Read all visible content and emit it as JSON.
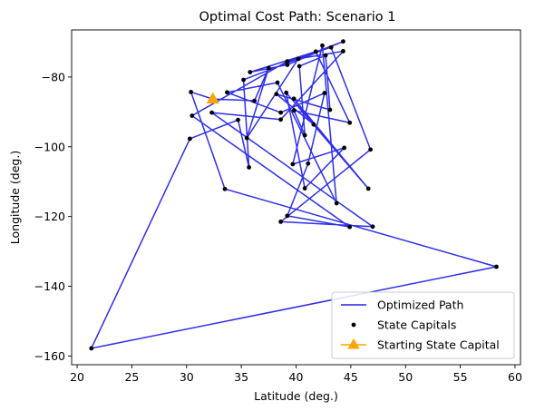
{
  "chart_data": {
    "type": "line",
    "title": "Optimal Cost Path: Scenario 1",
    "xlabel": "Latitude (deg.)",
    "ylabel": "Longitude (deg.)",
    "xlim": [
      19.5,
      60.5
    ],
    "ylim": [
      -162.5,
      -66.5
    ],
    "xticks": [
      20,
      25,
      30,
      35,
      40,
      45,
      50,
      55,
      60
    ],
    "yticks": [
      -160,
      -140,
      -120,
      -100,
      -80
    ],
    "grid": false,
    "legend_position": "lower-right",
    "colors": {
      "path": "#2424e6",
      "capitals": "#000000",
      "start": "#ffa500"
    },
    "series": [
      {
        "name": "Optimized Path",
        "kind": "line",
        "points": [
          [
            32.4,
            -86.3
          ],
          [
            30.4,
            -84.3
          ],
          [
            33.5,
            -112.1
          ],
          [
            58.3,
            -134.4
          ],
          [
            21.3,
            -157.8
          ],
          [
            30.3,
            -97.7
          ],
          [
            34.7,
            -92.3
          ],
          [
            35.7,
            -105.9
          ],
          [
            35.2,
            -80.8
          ],
          [
            44.3,
            -69.8
          ],
          [
            39.2,
            -76.5
          ],
          [
            35.8,
            -78.6
          ],
          [
            41.8,
            -72.7
          ],
          [
            44.9,
            -93.1
          ],
          [
            39.8,
            -89.6
          ],
          [
            40.8,
            -96.7
          ],
          [
            40.3,
            -76.9
          ],
          [
            42.7,
            -73.8
          ],
          [
            43.1,
            -89.4
          ],
          [
            38.2,
            -84.9
          ],
          [
            41.6,
            -93.6
          ],
          [
            39.8,
            -86.2
          ],
          [
            46.6,
            -112.0
          ],
          [
            39.1,
            -84.5
          ],
          [
            40.8,
            -111.9
          ],
          [
            44.4,
            -100.3
          ],
          [
            39.7,
            -105.0
          ],
          [
            42.4,
            -71.0
          ],
          [
            43.7,
            -116.2
          ],
          [
            38.3,
            -81.6
          ],
          [
            33.7,
            -84.4
          ],
          [
            38.6,
            -90.2
          ],
          [
            42.6,
            -84.6
          ],
          [
            41.1,
            -104.8
          ],
          [
            39.2,
            -119.8
          ],
          [
            44.9,
            -123.0
          ],
          [
            30.5,
            -91.1
          ],
          [
            39.2,
            -75.5
          ],
          [
            43.2,
            -71.5
          ],
          [
            46.8,
            -100.8
          ],
          [
            38.6,
            -121.5
          ],
          [
            47.0,
            -122.9
          ],
          [
            32.3,
            -90.2
          ],
          [
            38.6,
            -92.2
          ],
          [
            44.3,
            -72.6
          ],
          [
            40.2,
            -74.8
          ],
          [
            35.5,
            -97.5
          ],
          [
            37.5,
            -77.4
          ],
          [
            36.2,
            -86.8
          ],
          [
            32.4,
            -86.3
          ]
        ]
      },
      {
        "name": "State Capitals",
        "kind": "scatter",
        "points": [
          [
            32.4,
            -86.3
          ],
          [
            30.4,
            -84.3
          ],
          [
            33.5,
            -112.1
          ],
          [
            58.3,
            -134.4
          ],
          [
            21.3,
            -157.8
          ],
          [
            30.3,
            -97.7
          ],
          [
            34.7,
            -92.3
          ],
          [
            35.7,
            -105.9
          ],
          [
            35.2,
            -80.8
          ],
          [
            44.3,
            -69.8
          ],
          [
            39.2,
            -76.5
          ],
          [
            35.8,
            -78.6
          ],
          [
            41.8,
            -72.7
          ],
          [
            44.9,
            -93.1
          ],
          [
            39.8,
            -89.6
          ],
          [
            40.8,
            -96.7
          ],
          [
            40.3,
            -76.9
          ],
          [
            42.7,
            -73.8
          ],
          [
            43.1,
            -89.4
          ],
          [
            38.2,
            -84.9
          ],
          [
            41.6,
            -93.6
          ],
          [
            39.8,
            -86.2
          ],
          [
            46.6,
            -112.0
          ],
          [
            39.1,
            -84.5
          ],
          [
            40.8,
            -111.9
          ],
          [
            44.4,
            -100.3
          ],
          [
            39.7,
            -105.0
          ],
          [
            42.4,
            -71.0
          ],
          [
            43.7,
            -116.2
          ],
          [
            38.3,
            -81.6
          ],
          [
            33.7,
            -84.4
          ],
          [
            38.6,
            -90.2
          ],
          [
            42.6,
            -84.6
          ],
          [
            41.1,
            -104.8
          ],
          [
            39.2,
            -119.8
          ],
          [
            44.9,
            -123.0
          ],
          [
            30.5,
            -91.1
          ],
          [
            39.2,
            -75.5
          ],
          [
            43.2,
            -71.5
          ],
          [
            46.8,
            -100.8
          ],
          [
            38.6,
            -121.5
          ],
          [
            47.0,
            -122.9
          ],
          [
            32.3,
            -90.2
          ],
          [
            38.6,
            -92.2
          ],
          [
            44.3,
            -72.6
          ],
          [
            40.2,
            -74.8
          ],
          [
            35.5,
            -97.5
          ],
          [
            37.5,
            -77.4
          ],
          [
            36.2,
            -86.8
          ]
        ]
      },
      {
        "name": "Starting State Capital",
        "kind": "marker",
        "points": [
          [
            32.4,
            -86.3
          ]
        ]
      }
    ]
  }
}
